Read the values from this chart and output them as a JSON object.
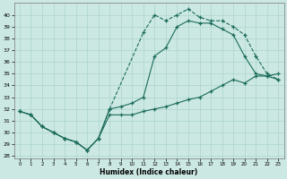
{
  "bg_color": "#cce8e3",
  "line_color": "#1a6b5a",
  "grid_color": "#aad4cc",
  "xlabel": "Humidex (Indice chaleur)",
  "xlim": [
    -0.5,
    23.5
  ],
  "ylim": [
    27.8,
    41.0
  ],
  "xticks": [
    0,
    1,
    2,
    3,
    4,
    5,
    6,
    7,
    8,
    9,
    10,
    11,
    12,
    13,
    14,
    15,
    16,
    17,
    18,
    19,
    20,
    21,
    22,
    23
  ],
  "yticks": [
    28,
    29,
    30,
    31,
    32,
    33,
    34,
    35,
    36,
    37,
    38,
    39,
    40
  ],
  "line1_x": [
    0,
    1,
    2,
    3,
    4,
    5,
    6,
    7,
    8,
    9,
    10,
    11,
    12,
    13,
    14,
    15,
    16,
    17,
    18,
    19,
    20,
    21,
    22,
    23
  ],
  "line1_y": [
    31.8,
    31.5,
    30.5,
    30.0,
    29.5,
    29.2,
    28.5,
    29.5,
    31.5,
    31.5,
    31.5,
    31.8,
    32.0,
    32.2,
    32.5,
    32.8,
    33.0,
    33.5,
    34.0,
    34.5,
    34.2,
    34.8,
    34.8,
    35.0
  ],
  "line2_x": [
    0,
    1,
    2,
    3,
    4,
    5,
    6,
    7,
    8,
    9,
    10,
    11,
    12,
    13,
    14,
    15,
    16,
    17,
    18,
    19,
    20,
    21,
    22,
    23
  ],
  "line2_y": [
    31.8,
    31.5,
    30.5,
    30.0,
    29.5,
    29.2,
    28.5,
    29.5,
    32.0,
    32.2,
    32.5,
    33.0,
    36.5,
    37.2,
    39.0,
    39.5,
    39.3,
    39.3,
    38.8,
    38.3,
    36.5,
    35.0,
    34.8,
    34.5
  ],
  "line3_x": [
    0,
    1,
    2,
    3,
    4,
    5,
    6,
    7,
    8,
    11,
    12,
    13,
    14,
    15,
    16,
    17,
    18,
    19,
    20,
    21,
    22,
    23
  ],
  "line3_y": [
    31.8,
    31.5,
    30.5,
    30.0,
    29.5,
    29.2,
    28.5,
    29.5,
    32.0,
    38.5,
    40.0,
    39.5,
    40.0,
    40.5,
    39.8,
    39.5,
    39.5,
    39.0,
    38.3,
    36.5,
    35.0,
    34.5
  ]
}
